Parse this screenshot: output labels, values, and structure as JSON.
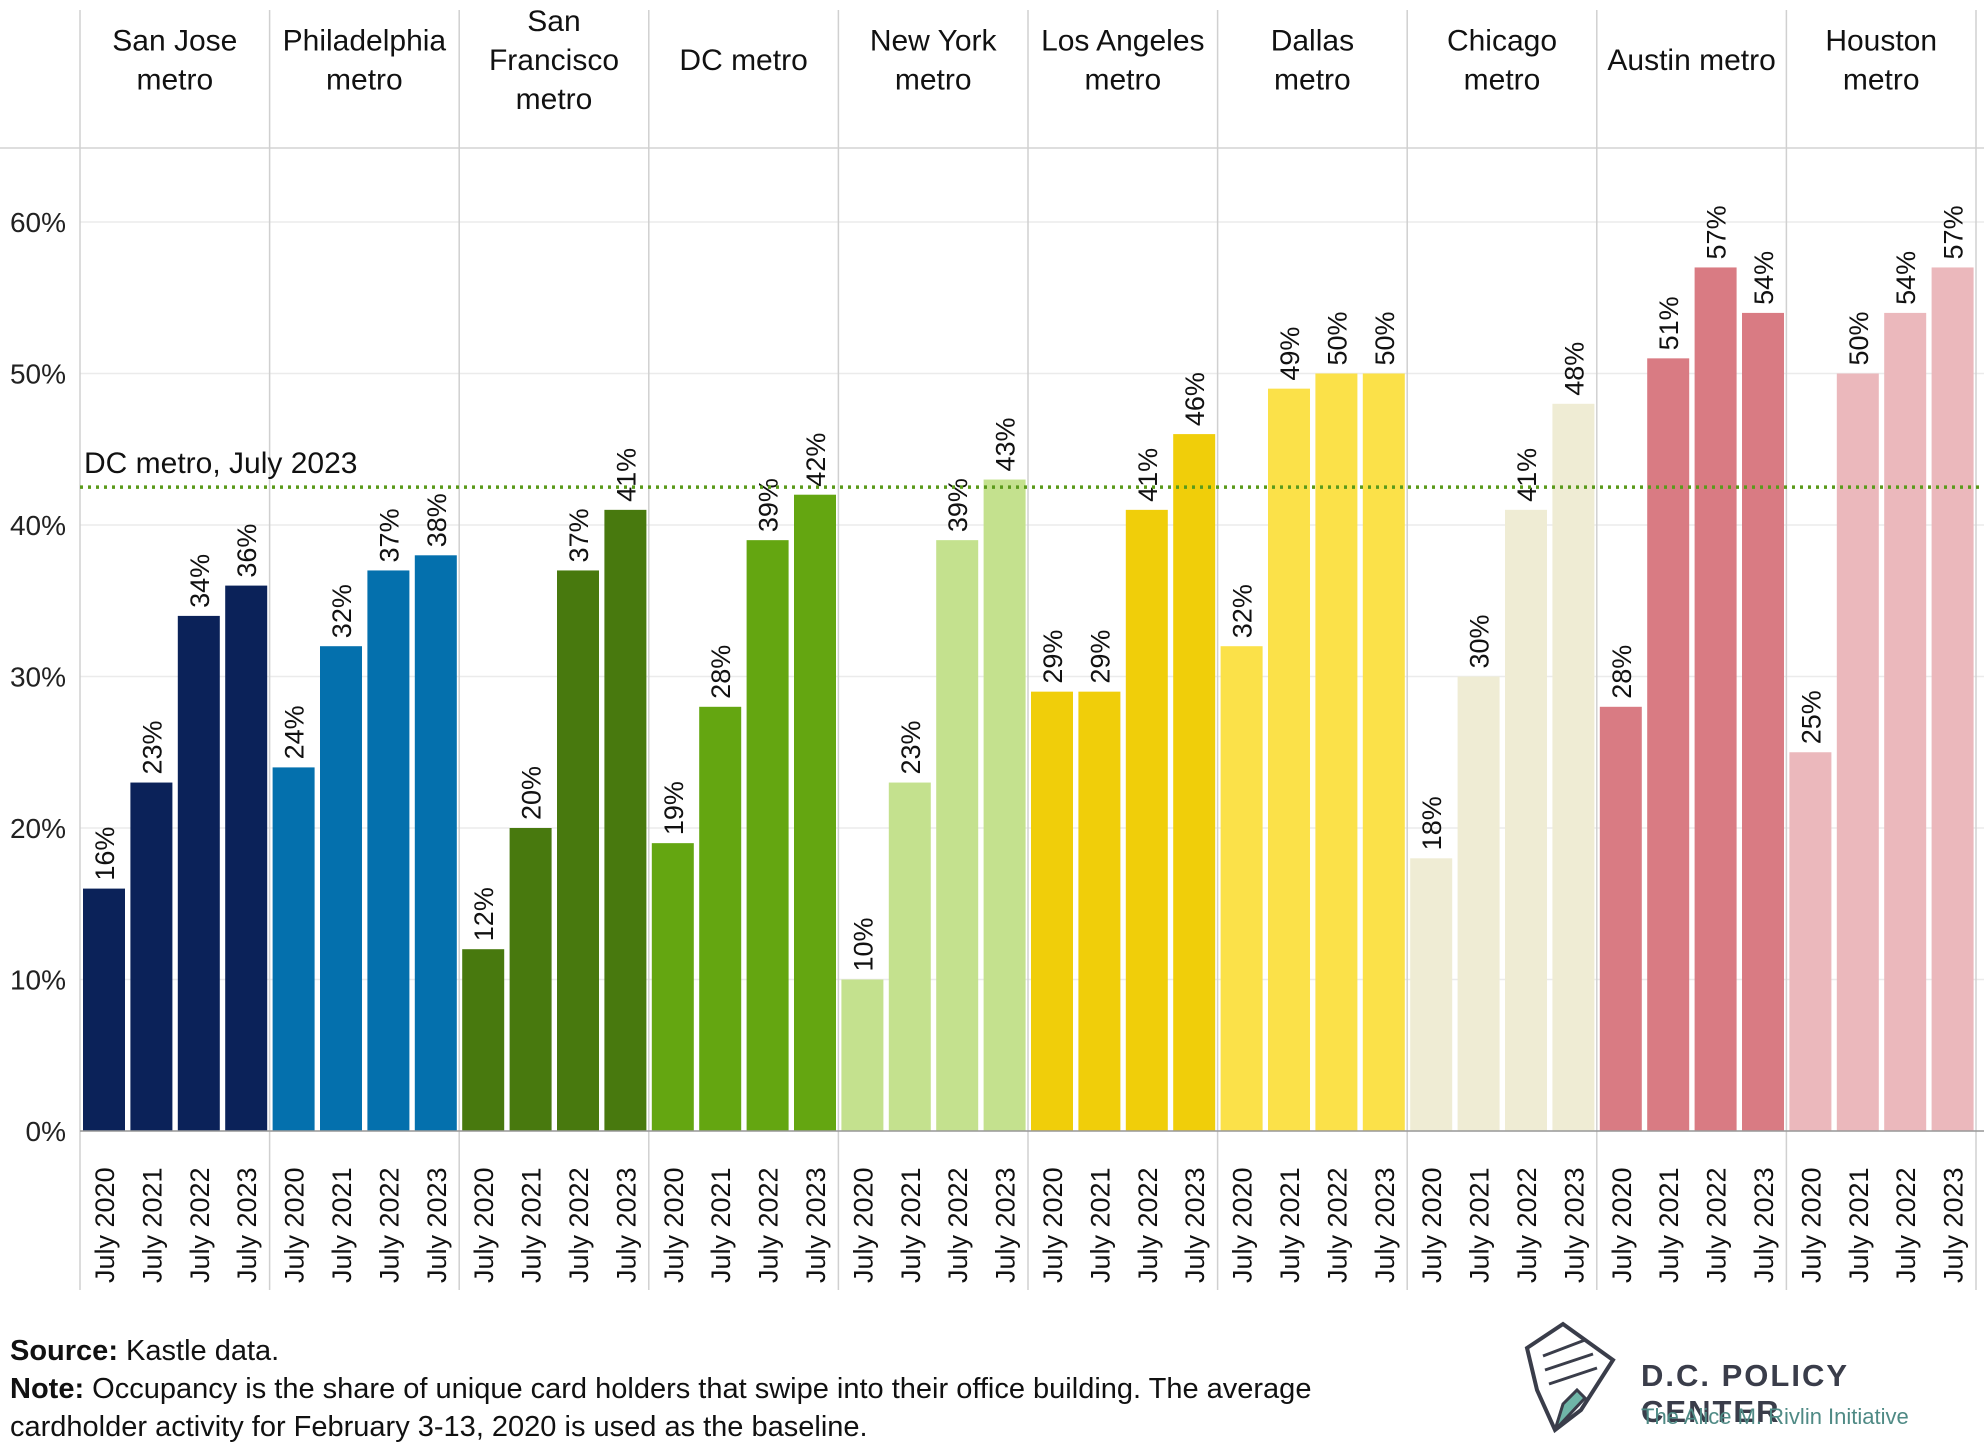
{
  "chart_data": {
    "type": "bar",
    "ylim": [
      0,
      65
    ],
    "yticks": [
      "0%",
      "10%",
      "20%",
      "30%",
      "40%",
      "50%",
      "60%"
    ],
    "ytick_values": [
      0,
      10,
      20,
      30,
      40,
      50,
      60
    ],
    "reference_line": {
      "label": "DC metro, July 2023",
      "value": 42.5,
      "color": "#5a9a1a"
    },
    "x_labels": [
      "July 2020",
      "July 2021",
      "July 2022",
      "July 2023"
    ],
    "groups": [
      {
        "name": [
          "San Jose",
          "metro"
        ],
        "values": [
          16,
          23,
          34,
          36
        ],
        "labels": [
          "16%",
          "23%",
          "34%",
          "36%"
        ],
        "color": "#0b2259"
      },
      {
        "name": [
          "Philadelphia",
          "metro"
        ],
        "values": [
          24,
          32,
          37,
          38
        ],
        "labels": [
          "24%",
          "32%",
          "37%",
          "38%"
        ],
        "color": "#0470ad"
      },
      {
        "name": [
          "San",
          "Francisco",
          "metro"
        ],
        "values": [
          12,
          20,
          37,
          41
        ],
        "labels": [
          "12%",
          "20%",
          "37%",
          "41%"
        ],
        "color": "#48790e"
      },
      {
        "name": [
          "DC metro"
        ],
        "values": [
          19,
          28,
          39,
          42
        ],
        "labels": [
          "19%",
          "28%",
          "39%",
          "42%"
        ],
        "color": "#64a611"
      },
      {
        "name": [
          "New York",
          "metro"
        ],
        "values": [
          10,
          23,
          39,
          43
        ],
        "labels": [
          "10%",
          "23%",
          "39%",
          "43%"
        ],
        "color": "#c4e18e"
      },
      {
        "name": [
          "Los Angeles",
          "metro"
        ],
        "values": [
          29,
          29,
          41,
          46
        ],
        "labels": [
          "29%",
          "29%",
          "41%",
          "46%"
        ],
        "color": "#f0ce0a"
      },
      {
        "name": [
          "Dallas",
          "metro"
        ],
        "values": [
          32,
          49,
          50,
          50
        ],
        "labels": [
          "32%",
          "49%",
          "50%",
          "50%"
        ],
        "color": "#fbe149"
      },
      {
        "name": [
          "Chicago",
          "metro"
        ],
        "values": [
          18,
          30,
          41,
          48
        ],
        "labels": [
          "18%",
          "30%",
          "41%",
          "48%"
        ],
        "color": "#efecd4"
      },
      {
        "name": [
          "Austin metro"
        ],
        "values": [
          28,
          51,
          57,
          54
        ],
        "labels": [
          "28%",
          "51%",
          "57%",
          "54%"
        ],
        "color": "#d97b83"
      },
      {
        "name": [
          "Houston",
          "metro"
        ],
        "values": [
          25,
          50,
          54,
          57
        ],
        "labels": [
          "25%",
          "50%",
          "54%",
          "57%"
        ],
        "color": "#ebb8bc"
      }
    ]
  },
  "footer": {
    "source_label": "Source:",
    "source_text": " Kastle data.",
    "note_label": "Note:",
    "note_line1": " Occupancy is the share of unique card holders that swipe into their office building. The average",
    "note_line2": "cardholder activity for February 3-13, 2020 is used as the baseline."
  },
  "logo": {
    "name": "D.C. POLICY CENTER",
    "subtitle": "The Alice M. Rivlin Initiative"
  }
}
